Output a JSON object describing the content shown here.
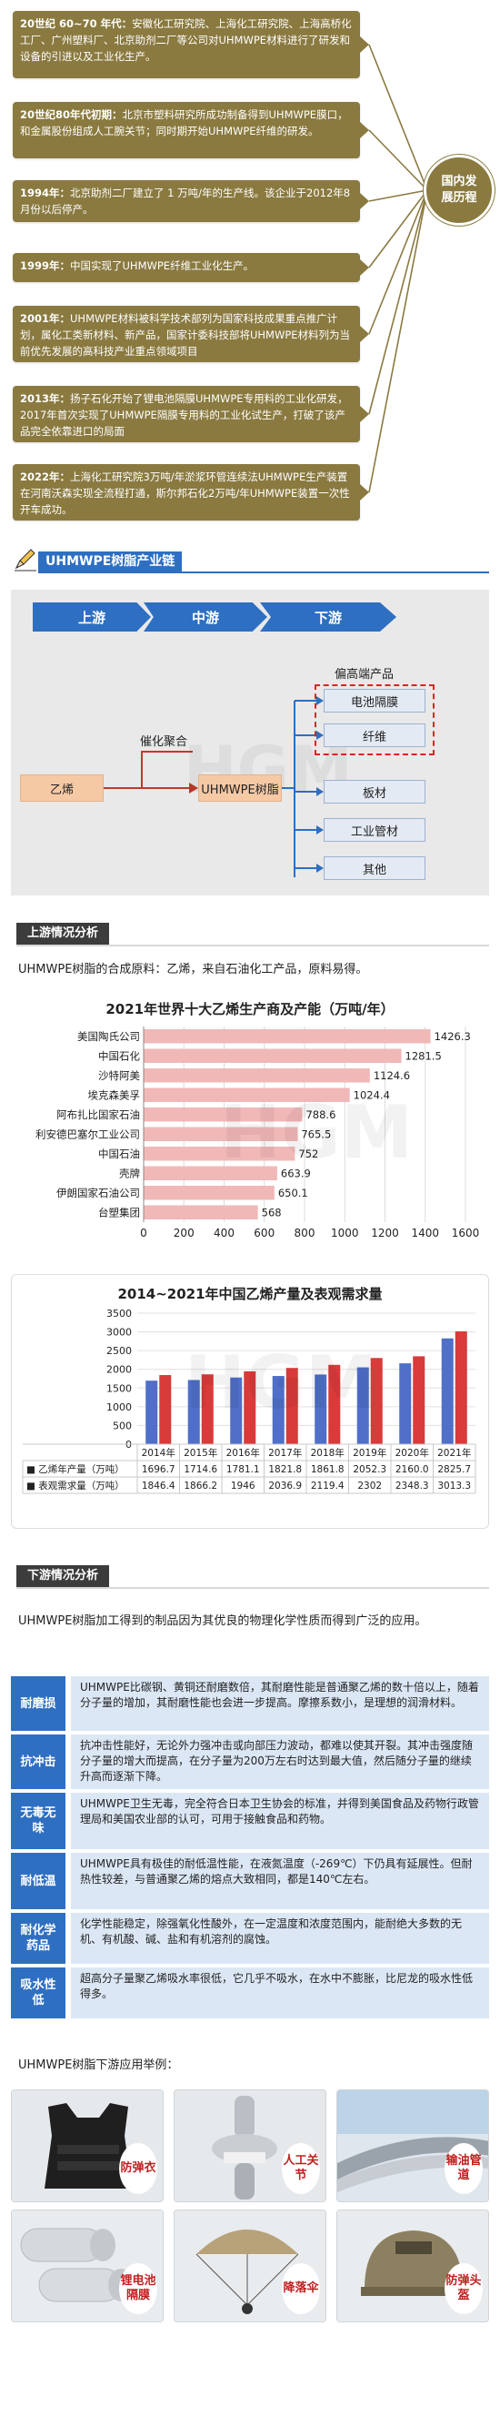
{
  "timeline": {
    "center_label": "国内发展历程",
    "items": [
      {
        "year": "20世纪 60~70 年代：",
        "text": "安徽化工研究院、上海化工研究院、上海高桥化工厂、广州塑料厂、北京助剂二厂等公司对UHMWPE材料进行了研发和设备的引进以及工业化生产。"
      },
      {
        "year": "20世纪80年代初期：",
        "text": "北京市塑料研究所成功制备得到UHMWPE膜口，和金属股份组成人工腕关节；同时期开始UHMWPE纤维的研发。"
      },
      {
        "year": "1994年：",
        "text": "北京助剂二厂建立了 1 万吨/年的生产线。该企业于2012年8月份以后停产。"
      },
      {
        "year": "1999年：",
        "text": "中国实现了UHMWPE纤维工业化生产。"
      },
      {
        "year": "2001年：",
        "text": "UHMWPE材料被科学技术部列为国家科技成果重点推广计划，属化工类新材料、新产品，国家计委科技部将UHMWPE材料列为当前优先发展的高科技产业重点领域项目"
      },
      {
        "year": "2013年：",
        "text": "扬子石化开始了锂电池隔膜UHMWPE专用料的工业化研发，2017年首次实现了UHMWPE隔膜专用料的工业化试生产，打破了该产品完全依靠进口的局面"
      },
      {
        "year": "2022年：",
        "text": "上海化工研究院3万吨/年淤浆环管连续法UHMWPE生产装置在河南沃森实现全流程打通，斯尔邦石化2万吨/年UHMWPE装置一次性开车成功。"
      }
    ]
  },
  "chain_section": {
    "title": "UHMWPE树脂产业链"
  },
  "chain": {
    "stages": [
      "上游",
      "中游",
      "下游"
    ],
    "process_label": "催化聚合",
    "upstream": "乙烯",
    "midstream": "UHMWPE树脂",
    "high_end_label": "偏高端产品",
    "high_end": [
      "电池隔膜",
      "纤维"
    ],
    "other_products": [
      "板材",
      "工业管材",
      "其他"
    ]
  },
  "upstream_section": {
    "title": "上游情况分析",
    "text": "UHMWPE树脂的合成原料：乙烯，来自石油化工产品，原料易得。"
  },
  "chart_data": [
    {
      "type": "bar",
      "orientation": "horizontal",
      "title": "2021年世界十大乙烯生产商及产能（万吨/年）",
      "categories": [
        "美国陶氏公司",
        "中国石化",
        "沙特阿美",
        "埃克森美孚",
        "阿布扎比国家石油",
        "利安德巴塞尔工业公司",
        "中国石油",
        "壳牌",
        "伊朗国家石油公司",
        "台塑集团"
      ],
      "values": [
        1426.3,
        1281.5,
        1124.6,
        1024.4,
        788.6,
        765.5,
        752,
        663.9,
        650.1,
        568
      ],
      "xlim": [
        0,
        1600
      ],
      "xticks": [
        0,
        200,
        400,
        600,
        800,
        1000,
        1200,
        1400,
        1600
      ],
      "bar_color": "#f1b8b8",
      "grid": true
    },
    {
      "type": "bar",
      "title": "2014~2021年中国乙烯产量及表观需求量",
      "categories": [
        "2014年",
        "2015年",
        "2016年",
        "2017年",
        "2018年",
        "2019年",
        "2020年",
        "2021年"
      ],
      "series": [
        {
          "name": "乙烯年产量（万吨）",
          "values": [
            1696.7,
            1714.6,
            1781.1,
            1821.8,
            1861.8,
            2052.3,
            2160.0,
            2825.7
          ],
          "color": "#4f6fc8"
        },
        {
          "name": "表观需求量（万吨）",
          "values": [
            1846.4,
            1866.2,
            1946,
            2036.9,
            2119.4,
            2302,
            2348.3,
            3013.3
          ],
          "color": "#d93a3a"
        }
      ],
      "series_labels": [
        "■ 乙烯年产量（万吨）",
        "■ 表观需求量（万吨）"
      ],
      "table_values": [
        [
          "1696.7",
          "1714.6",
          "1781.1",
          "1821.8",
          "1861.8",
          "2052.3",
          "2160.0",
          "2825.7"
        ],
        [
          "1846.4",
          "1866.2",
          "1946",
          "2036.9",
          "2119.4",
          "2302",
          "2348.3",
          "3013.3"
        ]
      ],
      "ylim": [
        0,
        3500
      ],
      "yticks": [
        0,
        500,
        1000,
        1500,
        2000,
        2500,
        3000,
        3500
      ],
      "grid": true,
      "legend": "data-table"
    }
  ],
  "downstream_section": {
    "title": "下游情况分析",
    "text": "UHMWPE树脂加工得到的制品因为其优良的物理化学性质而得到广泛的应用。"
  },
  "properties": [
    {
      "label": "耐磨损",
      "text": "UHMWPE比碳钢、黄铜还耐磨数倍，其耐磨性能是普通聚乙烯的数十倍以上，随着分子量的增加，其耐磨性能也会进一步提高。摩擦系数小，是理想的润滑材料。"
    },
    {
      "label": "抗冲击",
      "text": "抗冲击性能好，无论外力强冲击或向部压力波动，都难以使其开裂。其冲击强度随分子量的增大而提高，在分子量为200万左右时达到最大值，然后随分子量的继续升高而逐渐下降。"
    },
    {
      "label": "无毒无味",
      "text": "UHMWPE卫生无毒，完全符合日本卫生协会的标准，并得到美国食品及药物行政管理局和美国农业部的认可，可用于接触食品和药物。"
    },
    {
      "label": "耐低温",
      "text": "UHMWPE具有极佳的耐低温性能，在液氮温度（-269℃）下仍具有延展性。但耐热性较差，与普通聚乙烯的熔点大致相同，都是140℃左右。"
    },
    {
      "label": "耐化学药品",
      "text": "化学性能稳定，除强氧化性酸外，在一定温度和浓度范围内，能耐绝大多数的无机、有机酸、碱、盐和有机溶剂的腐蚀。"
    },
    {
      "label": "吸水性低",
      "text": "超高分子量聚乙烯吸水率很低，它几乎不吸水，在水中不膨胀，比尼龙的吸水性低得多。"
    }
  ],
  "apps_section": {
    "title": "UHMWPE树脂下游应用举例："
  },
  "apps": [
    {
      "label": "防弹衣",
      "icon": "vest-icon"
    },
    {
      "label": "人工关节",
      "icon": "joint-icon"
    },
    {
      "label": "输油管道",
      "icon": "pipe-icon"
    },
    {
      "label": "锂电池隔膜",
      "icon": "film-roll-icon"
    },
    {
      "label": "降落伞",
      "icon": "parachute-icon"
    },
    {
      "label": "防弹头盔",
      "icon": "helmet-icon"
    }
  ],
  "colors": {
    "timeline": "#8a7a40",
    "blue": "#2e6fc2",
    "red": "#d93a3a",
    "orange_box": "#f6c9a5"
  }
}
